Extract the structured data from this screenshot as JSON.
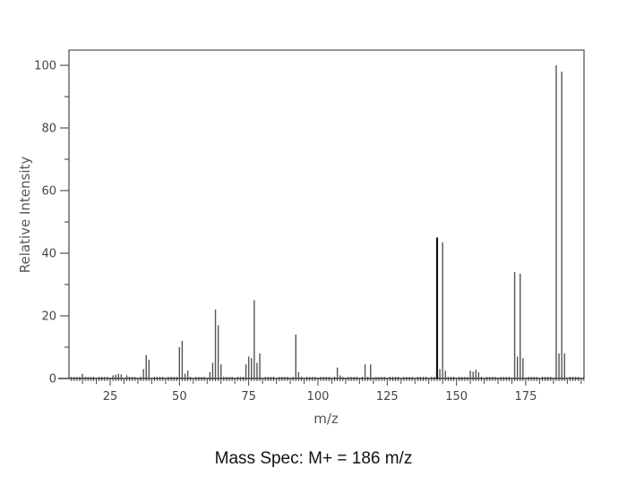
{
  "caption": "Mass Spec: M+ = 186 m/z",
  "chart_data": {
    "type": "bar",
    "title": "",
    "xlabel": "m/z",
    "ylabel": "Relative Intensity",
    "xlim": [
      10,
      196
    ],
    "ylim": [
      0,
      105
    ],
    "x_ticks": [
      25,
      50,
      75,
      100,
      125,
      150,
      175
    ],
    "y_ticks": [
      0,
      20,
      40,
      60,
      80,
      100
    ],
    "grid": false,
    "legend": null,
    "peaks": [
      {
        "mz": 15,
        "intensity": 1.5
      },
      {
        "mz": 26,
        "intensity": 1.0
      },
      {
        "mz": 27,
        "intensity": 1.2
      },
      {
        "mz": 28,
        "intensity": 1.5
      },
      {
        "mz": 29,
        "intensity": 1.3
      },
      {
        "mz": 31,
        "intensity": 1.0
      },
      {
        "mz": 37,
        "intensity": 3.0
      },
      {
        "mz": 38,
        "intensity": 7.5
      },
      {
        "mz": 39,
        "intensity": 6.0
      },
      {
        "mz": 50,
        "intensity": 10.0
      },
      {
        "mz": 51,
        "intensity": 12.0
      },
      {
        "mz": 52,
        "intensity": 1.5
      },
      {
        "mz": 53,
        "intensity": 2.5
      },
      {
        "mz": 61,
        "intensity": 2.0
      },
      {
        "mz": 62,
        "intensity": 5.0
      },
      {
        "mz": 63,
        "intensity": 22.0
      },
      {
        "mz": 64,
        "intensity": 17.0
      },
      {
        "mz": 65,
        "intensity": 4.5
      },
      {
        "mz": 74,
        "intensity": 4.5
      },
      {
        "mz": 75,
        "intensity": 7.0
      },
      {
        "mz": 76,
        "intensity": 6.5
      },
      {
        "mz": 77,
        "intensity": 25.0
      },
      {
        "mz": 78,
        "intensity": 5.0
      },
      {
        "mz": 79,
        "intensity": 8.0
      },
      {
        "mz": 92,
        "intensity": 14.0
      },
      {
        "mz": 93,
        "intensity": 2.0
      },
      {
        "mz": 107,
        "intensity": 3.5
      },
      {
        "mz": 108,
        "intensity": 1.0
      },
      {
        "mz": 117,
        "intensity": 4.5
      },
      {
        "mz": 119,
        "intensity": 4.5
      },
      {
        "mz": 143,
        "intensity": 45.0
      },
      {
        "mz": 144,
        "intensity": 3.0
      },
      {
        "mz": 145,
        "intensity": 43.5
      },
      {
        "mz": 146,
        "intensity": 2.5
      },
      {
        "mz": 155,
        "intensity": 2.5
      },
      {
        "mz": 156,
        "intensity": 2.2
      },
      {
        "mz": 157,
        "intensity": 2.8
      },
      {
        "mz": 158,
        "intensity": 2.0
      },
      {
        "mz": 171,
        "intensity": 34.0
      },
      {
        "mz": 172,
        "intensity": 7.0
      },
      {
        "mz": 173,
        "intensity": 33.5
      },
      {
        "mz": 174,
        "intensity": 6.5
      },
      {
        "mz": 186,
        "intensity": 100.0
      },
      {
        "mz": 187,
        "intensity": 8.0
      },
      {
        "mz": 188,
        "intensity": 98.0
      },
      {
        "mz": 189,
        "intensity": 8.0
      }
    ]
  }
}
